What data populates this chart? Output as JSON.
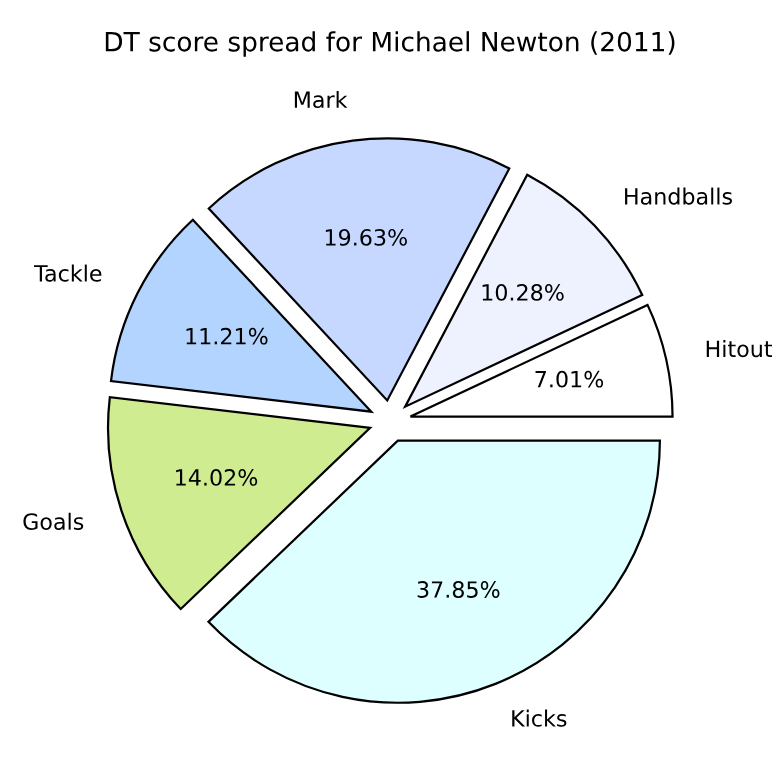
{
  "chart_data": {
    "type": "pie",
    "title": "DT score spread for Michael Newton (2011)",
    "categories": [
      "Hitout",
      "Handballs",
      "Mark",
      "Tackle",
      "Goals",
      "Kicks"
    ],
    "values": [
      7.01,
      10.28,
      19.63,
      11.21,
      14.02,
      37.85
    ],
    "colors": [
      "#ffffff",
      "#eef2ff",
      "#c6d8ff",
      "#b3d4ff",
      "#d0ec90",
      "#ddffff"
    ],
    "value_labels": [
      "7.01%",
      "10.28%",
      "19.63%",
      "11.21%",
      "14.02%",
      "37.85%"
    ],
    "legend": false
  }
}
